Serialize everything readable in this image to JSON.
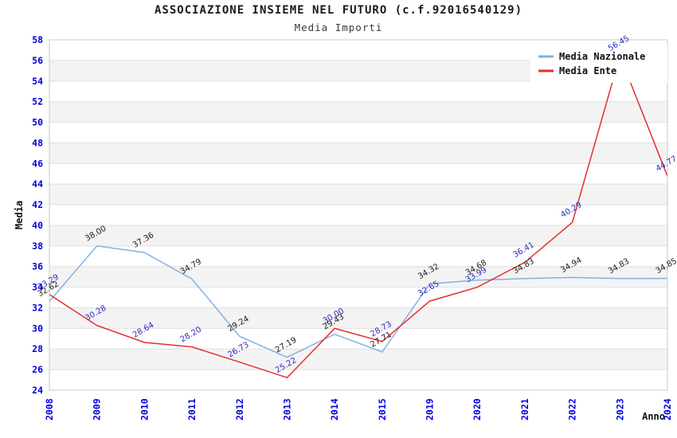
{
  "title": "ASSOCIAZIONE INSIEME NEL FUTURO (c.f.92016540129)",
  "subtitle": "Media Importi",
  "chart_data": {
    "type": "line",
    "title": "ASSOCIAZIONE INSIEME NEL FUTURO (c.f.92016540129)",
    "subtitle": "Media Importi",
    "xlabel": "Anno",
    "ylabel": "Media",
    "ylim": [
      24,
      58
    ],
    "ytick_step": 2,
    "grid": true,
    "band_shading": true,
    "legend_position": "top-right",
    "categories": [
      "2008",
      "2009",
      "2010",
      "2011",
      "2012",
      "2013",
      "2014",
      "2015",
      "2019",
      "2020",
      "2021",
      "2022",
      "2023",
      "2024"
    ],
    "series": [
      {
        "name": "Media Nazionale",
        "color": "#7fb2e5",
        "label_color": "#1c1c1c",
        "values": [
          32.62,
          38.0,
          37.36,
          34.79,
          29.24,
          27.19,
          29.43,
          27.71,
          34.32,
          34.68,
          34.83,
          34.94,
          34.83,
          34.85
        ]
      },
      {
        "name": "Media Ente",
        "color": "#e62e2e",
        "label_color": "#2b2bbf",
        "values": [
          33.29,
          30.28,
          28.64,
          28.2,
          26.73,
          25.22,
          30.0,
          28.73,
          32.65,
          33.99,
          36.41,
          40.29,
          56.45,
          44.77
        ]
      }
    ]
  },
  "colors": {
    "tick_label": "#0000dd",
    "band_fill": "#f3f3f3",
    "grid_line": "#e0e0e0",
    "plot_border": "#c9c9c9",
    "legend_bg": "#ffffff"
  }
}
